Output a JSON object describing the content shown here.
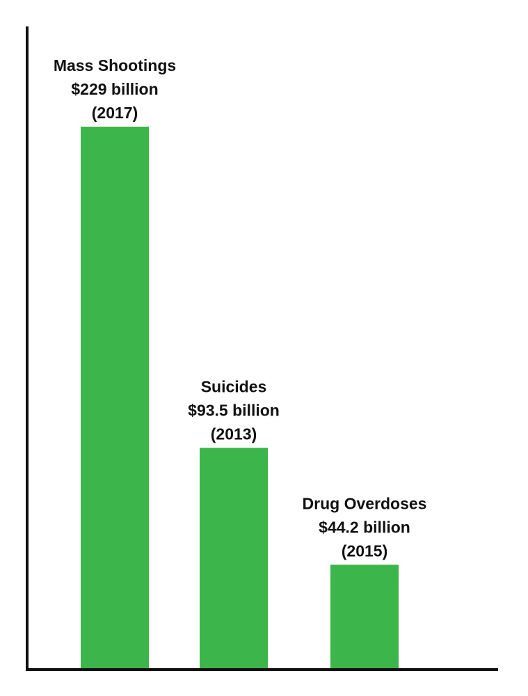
{
  "chart_data": {
    "type": "bar",
    "categories": [
      "Mass Shootings",
      "Suicides",
      "Drug Overdoses"
    ],
    "values": [
      229,
      93.5,
      44.2
    ],
    "value_labels": [
      "$229 billion",
      "$93.5 billion",
      "$44.2 billion"
    ],
    "years": [
      "(2017)",
      "(2013)",
      "(2015)"
    ],
    "units": "billion USD",
    "title": "",
    "xlabel": "",
    "ylabel": "",
    "grid": false,
    "legend": "none",
    "bar_color": "#3cb54a",
    "axis_color": "#111111"
  }
}
